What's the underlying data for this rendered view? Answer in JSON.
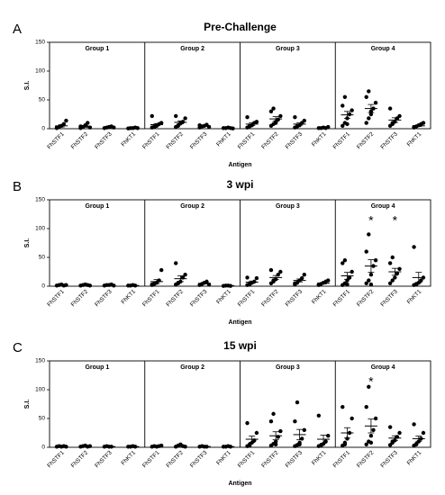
{
  "chart_data": [
    {
      "type": "dotplot",
      "panel": "A",
      "title": "Pre-Challenge",
      "ylabel": "S.I.",
      "xlabel": "Antigen",
      "ylim": [
        0,
        150
      ],
      "yticks": [
        0,
        50,
        100,
        150
      ],
      "groups": [
        {
          "name": "Group 1",
          "categories": [
            "FhSTF1",
            "FhSTF2",
            "FhSTF3",
            "FhKT1"
          ],
          "points": [
            [
              2,
              3,
              5,
              8,
              14,
              1
            ],
            [
              1,
              3,
              6,
              10,
              2,
              4
            ],
            [
              1,
              2,
              3,
              4,
              2
            ],
            [
              0.5,
              1,
              1,
              2,
              1
            ]
          ],
          "means": [
            5,
            4,
            2,
            1
          ],
          "sems": [
            2,
            1.5,
            0.5,
            0.3
          ]
        },
        {
          "name": "Group 2",
          "categories": [
            "FhSTF1",
            "FhSTF2",
            "FhSTF3",
            "FhKT1"
          ],
          "points": [
            [
              2,
              4,
              6,
              8,
              10,
              22,
              3,
              5
            ],
            [
              3,
              6,
              9,
              12,
              18,
              22,
              5,
              10
            ],
            [
              2,
              4,
              5,
              7,
              3,
              6
            ],
            [
              1,
              1,
              2,
              1,
              0.5
            ]
          ],
          "means": [
            7,
            11,
            5,
            1
          ],
          "sems": [
            2,
            2.5,
            1,
            0.3
          ]
        },
        {
          "name": "Group 3",
          "categories": [
            "FhSTF1",
            "FhSTF2",
            "FhSTF3",
            "FhKT1"
          ],
          "points": [
            [
              2,
              4,
              6,
              10,
              12,
              20,
              5
            ],
            [
              5,
              8,
              12,
              16,
              22,
              30,
              35,
              10
            ],
            [
              2,
              4,
              6,
              10,
              14,
              20,
              5
            ],
            [
              1,
              1,
              2,
              1,
              3
            ]
          ],
          "means": [
            8,
            17,
            8,
            1.5
          ],
          "sems": [
            2.5,
            4,
            2,
            0.4
          ]
        },
        {
          "name": "Group 4",
          "categories": [
            "FhSTF1",
            "FhSTF2",
            "FhSTF3",
            "FhKT1"
          ],
          "points": [
            [
              5,
              10,
              18,
              25,
              32,
              40,
              55,
              8
            ],
            [
              10,
              18,
              25,
              35,
              45,
              55,
              65,
              30
            ],
            [
              5,
              8,
              12,
              18,
              22,
              35,
              10
            ],
            [
              2,
              4,
              6,
              8,
              10,
              3
            ]
          ],
          "means": [
            24,
            35,
            15,
            5
          ],
          "sems": [
            6,
            7,
            4,
            1.2
          ]
        }
      ]
    },
    {
      "type": "dotplot",
      "panel": "B",
      "title": "3 wpi",
      "ylabel": "S.I.",
      "xlabel": "Antigen",
      "ylim": [
        0,
        150
      ],
      "yticks": [
        0,
        50,
        100,
        150
      ],
      "groups": [
        {
          "name": "Group 1",
          "categories": [
            "FhSTF1",
            "FhSTF2",
            "FhSTF3",
            "FhKT1"
          ],
          "points": [
            [
              1,
              2,
              3,
              1,
              2
            ],
            [
              1,
              2,
              3,
              2,
              1
            ],
            [
              1,
              2,
              2,
              3,
              1
            ],
            [
              1,
              1,
              2,
              1
            ]
          ],
          "means": [
            2,
            2,
            2,
            1.2
          ],
          "sems": [
            0.3,
            0.3,
            0.3,
            0.2
          ]
        },
        {
          "name": "Group 2",
          "categories": [
            "FhSTF1",
            "FhSTF2",
            "FhSTF3",
            "FhKT1"
          ],
          "points": [
            [
              2,
              4,
              6,
              10,
              28,
              3,
              5
            ],
            [
              3,
              5,
              8,
              15,
              20,
              40,
              6
            ],
            [
              2,
              4,
              6,
              8,
              3
            ],
            [
              0.5,
              1,
              1,
              0.5
            ]
          ],
          "means": [
            8,
            13,
            5,
            1
          ],
          "sems": [
            3.5,
            5,
            1,
            0.2
          ]
        },
        {
          "name": "Group 3",
          "categories": [
            "FhSTF1",
            "FhSTF2",
            "FhSTF3",
            "FhKT1"
          ],
          "points": [
            [
              2,
              4,
              6,
              8,
              14,
              15,
              3
            ],
            [
              5,
              8,
              12,
              20,
              25,
              28,
              10
            ],
            [
              3,
              6,
              10,
              14,
              20,
              5
            ],
            [
              2,
              4,
              6,
              8,
              10,
              3
            ]
          ],
          "means": [
            7,
            15,
            10,
            5
          ],
          "sems": [
            2,
            3.5,
            2.5,
            1.3
          ]
        },
        {
          "name": "Group 4",
          "categories": [
            "FhSTF1",
            "FhSTF2",
            "FhSTF3",
            "FhKT1"
          ],
          "points": [
            [
              2,
              5,
              10,
              15,
              25,
              40,
              45,
              3
            ],
            [
              5,
              10,
              20,
              35,
              45,
              60,
              90,
              3
            ],
            [
              5,
              10,
              15,
              22,
              30,
              40,
              50
            ],
            [
              2,
              4,
              6,
              10,
              15,
              68,
              3
            ]
          ],
          "means": [
            18,
            35,
            25,
            15
          ],
          "sems": [
            6,
            11,
            6,
            9
          ],
          "significance": [
            null,
            "*",
            "*",
            null
          ]
        }
      ]
    },
    {
      "type": "dotplot",
      "panel": "C",
      "title": "15 wpi",
      "ylabel": "S.I.",
      "xlabel": "Antigen",
      "ylim": [
        0,
        150
      ],
      "yticks": [
        0,
        50,
        100,
        150
      ],
      "groups": [
        {
          "name": "Group 1",
          "categories": [
            "FhSTF1",
            "FhSTF2",
            "FhSTF3",
            "FhKT1"
          ],
          "points": [
            [
              1,
              2,
              1,
              2,
              1
            ],
            [
              1,
              2,
              3,
              1,
              2
            ],
            [
              1,
              2,
              1,
              1
            ],
            [
              1,
              1,
              2,
              1
            ]
          ],
          "means": [
            1.5,
            1.8,
            1.3,
            1.2
          ],
          "sems": [
            0.3,
            0.3,
            0.3,
            0.2
          ]
        },
        {
          "name": "Group 2",
          "categories": [
            "FhSTF1",
            "FhSTF2",
            "FhSTF3",
            "FhKT1"
          ],
          "points": [
            [
              1,
              2,
              1,
              2,
              3
            ],
            [
              1,
              3,
              5,
              2,
              1
            ],
            [
              1,
              2,
              1,
              1
            ],
            [
              1,
              1,
              2,
              1
            ]
          ],
          "means": [
            1.8,
            2.4,
            1.3,
            1.2
          ],
          "sems": [
            0.3,
            0.7,
            0.3,
            0.2
          ]
        },
        {
          "name": "Group 3",
          "categories": [
            "FhSTF1",
            "FhSTF2",
            "FhSTF3",
            "FhKT1"
          ],
          "points": [
            [
              2,
              5,
              8,
              12,
              25,
              42,
              3
            ],
            [
              3,
              6,
              10,
              18,
              28,
              45,
              58,
              5
            ],
            [
              2,
              4,
              8,
              15,
              30,
              45,
              78,
              5
            ],
            [
              2,
              3,
              6,
              10,
              20,
              55,
              4
            ]
          ],
          "means": [
            14,
            20,
            22,
            14
          ],
          "sems": [
            5.5,
            7,
            9,
            7
          ]
        },
        {
          "name": "Group 4",
          "categories": [
            "FhSTF1",
            "FhSTF2",
            "FhSTF3",
            "FhKT1"
          ],
          "points": [
            [
              3,
              8,
              15,
              25,
              50,
              70,
              5
            ],
            [
              5,
              10,
              20,
              30,
              50,
              70,
              105,
              8
            ],
            [
              4,
              8,
              12,
              18,
              25,
              35,
              10
            ],
            [
              3,
              6,
              10,
              15,
              25,
              40,
              5
            ]
          ],
          "means": [
            25,
            37,
            16,
            15
          ],
          "sems": [
            9,
            12,
            4,
            4.5
          ],
          "significance": [
            null,
            "*",
            null,
            null
          ]
        }
      ]
    }
  ]
}
